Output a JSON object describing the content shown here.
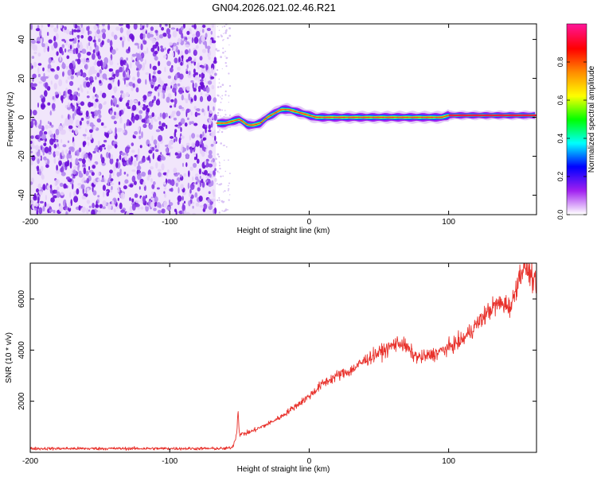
{
  "title": "GN04.2026.021.02.46.R21",
  "chart_data": [
    {
      "type": "heatmap",
      "name": "spectrogram",
      "xlabel": "Height of straight line (km)",
      "ylabel": "Frequency (Hz)",
      "xlim": [
        -200,
        163
      ],
      "ylim": [
        -50,
        48
      ],
      "xticks": [
        -200,
        -100,
        0,
        100
      ],
      "xtick_labels": [
        "-200",
        "-100",
        "0",
        "100"
      ],
      "yticks": [
        -40,
        -20,
        0,
        20,
        40
      ],
      "ytick_labels": [
        "-40",
        "-20",
        "0",
        "20",
        "40"
      ],
      "noise_region_x": [
        -200,
        -67
      ],
      "signal_start_x": -67,
      "signal_track": {
        "x": [
          -66,
          -60,
          -50,
          -44,
          -40,
          -35,
          -30,
          -25,
          -20,
          -15,
          -10,
          -5,
          0,
          5,
          20,
          60,
          90,
          95,
          100,
          163
        ],
        "y": [
          -3,
          -3,
          -1,
          -4,
          -4,
          -3,
          0,
          2,
          4,
          4,
          3,
          2,
          1,
          0,
          0,
          0,
          0,
          0,
          1,
          1
        ]
      },
      "colorbar": {
        "label": "Normalized spectral amplitude",
        "range": [
          0,
          1
        ],
        "ticks": [
          0.0,
          0.2,
          0.4,
          0.6,
          0.8
        ],
        "tick_labels": [
          "0.0",
          "0.2",
          "0.4",
          "0.6",
          "0.8"
        ],
        "stops": [
          "#ffffff",
          "#a020f0",
          "#0000ff",
          "#00ffff",
          "#00ff00",
          "#ffff00",
          "#ff8c00",
          "#ff0000",
          "#ff1493"
        ]
      }
    },
    {
      "type": "line",
      "name": "snr",
      "xlabel": "Height of straight line (km)",
      "ylabel": "SNR (10 * v/v)",
      "xlim": [
        -200,
        163
      ],
      "ylim": [
        0,
        7400
      ],
      "xticks": [
        -200,
        -100,
        0,
        100
      ],
      "xtick_labels": [
        "-200",
        "-100",
        "0",
        "100"
      ],
      "yticks": [
        2000,
        4000,
        6000
      ],
      "ytick_labels": [
        "2000",
        "4000",
        "6000"
      ],
      "color": "#e8312b",
      "series": [
        {
          "name": "SNR",
          "x": [
            -200,
            -150,
            -100,
            -60,
            -55,
            -52,
            -51,
            -50,
            -45,
            -40,
            -30,
            -20,
            -10,
            0,
            10,
            20,
            30,
            40,
            50,
            55,
            60,
            65,
            70,
            75,
            80,
            90,
            100,
            110,
            115,
            120,
            125,
            130,
            135,
            140,
            145,
            148,
            152,
            155,
            160,
            163
          ],
          "y": [
            150,
            150,
            150,
            150,
            200,
            700,
            1700,
            700,
            750,
            850,
            1100,
            1400,
            1800,
            2200,
            2700,
            3000,
            3200,
            3600,
            3900,
            4000,
            4200,
            4300,
            4100,
            3800,
            3700,
            3850,
            4100,
            4400,
            4700,
            5000,
            5300,
            5600,
            5800,
            5800,
            5700,
            6400,
            7100,
            7300,
            6800,
            6400
          ]
        }
      ]
    }
  ]
}
